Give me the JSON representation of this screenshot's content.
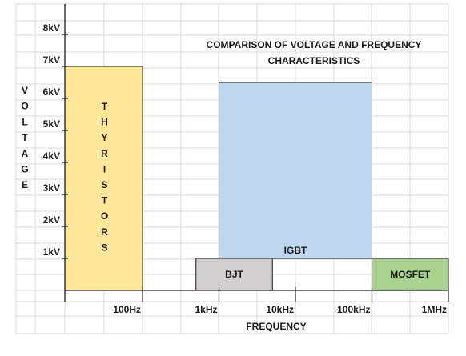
{
  "chart_data": {
    "type": "bar",
    "title_lines": [
      "COMPARISON OF VOLTAGE AND FREQUENCY",
      "CHARACTERISTICS"
    ],
    "xlabel": "FREQUENCY",
    "ylabel": "VOLTAGE",
    "x_axis": {
      "scale": "log",
      "ticks": [
        "100Hz",
        "1kHz",
        "10kHz",
        "100kHz",
        "1MHz"
      ]
    },
    "y_axis": {
      "ticks": [
        "1kV",
        "2kV",
        "3kV",
        "4kV",
        "5kV",
        "6kV",
        "7kV",
        "8kV"
      ],
      "ylim": [
        0,
        8
      ],
      "unit": "kV"
    },
    "grid": true,
    "series": [
      {
        "name": "THYRISTORS",
        "label": "THYRISTORS",
        "label_orientation": "vertical",
        "freq_range": [
          "",
          "100Hz"
        ],
        "voltage_range_kv": [
          0,
          7
        ],
        "color": "#FFE699"
      },
      {
        "name": "BJT",
        "label": "BJT",
        "freq_range": [
          "500Hz",
          "5kHz"
        ],
        "voltage_range_kv": [
          0,
          1
        ],
        "color": "#D0CECE"
      },
      {
        "name": "IGBT",
        "label": "IGBT",
        "freq_range": [
          "1kHz",
          "100kHz"
        ],
        "voltage_range_kv": [
          1,
          6.5
        ],
        "color": "#BDD7EE"
      },
      {
        "name": "MOSFET",
        "label": "MOSFET",
        "freq_range": [
          "100kHz",
          "1MHz"
        ],
        "voltage_range_kv": [
          0,
          1
        ],
        "color": "#A9D18E"
      }
    ]
  }
}
